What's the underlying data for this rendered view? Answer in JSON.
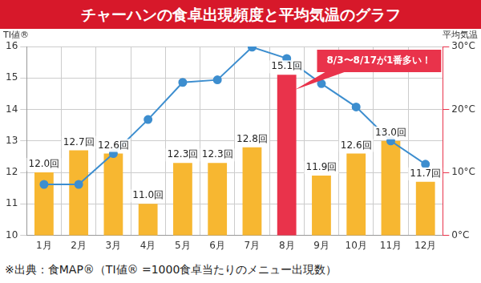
{
  "chart_data": {
    "type": "bar",
    "title": "チャーハンの食卓出現頻度と平均気温のグラフ",
    "footnote": "※出典：食MAP®（TI値® =1000食卓当たりのメニュー出現数）",
    "y_label": "TI値®",
    "y2_label": "平均気温",
    "categories": [
      "1月",
      "2月",
      "3月",
      "4月",
      "5月",
      "6月",
      "7月",
      "8月",
      "9月",
      "10月",
      "11月",
      "12月"
    ],
    "series": [
      {
        "type": "bar",
        "axis": "y",
        "values": [
          12.0,
          12.7,
          12.6,
          11.0,
          12.3,
          12.3,
          12.8,
          15.1,
          11.9,
          12.6,
          13.0,
          11.7
        ],
        "value_labels": [
          "12.0回",
          "12.7回",
          "12.6回",
          "11.0回",
          "12.3回",
          "12.3回",
          "12.8回",
          "15.1回",
          "11.9回",
          "12.6回",
          "13.0回",
          "11.7回"
        ],
        "color": "#f7b731",
        "colors": [
          "#f7b731",
          "#f7b731",
          "#f7b731",
          "#f7b731",
          "#f7b731",
          "#f7b731",
          "#f7b731",
          "#e9334b",
          "#f7b731",
          "#f7b731",
          "#f7b731",
          "#f7b731"
        ]
      },
      {
        "type": "line",
        "axis": "y2",
        "values": [
          8.1,
          8.1,
          13.0,
          18.4,
          24.3,
          24.7,
          29.9,
          28.1,
          24.1,
          20.4,
          15.0,
          11.3
        ],
        "color": "#3d8ecf",
        "marker": "circle",
        "line_style": "solid"
      }
    ],
    "ylim": [
      10,
      16
    ],
    "yticks": [
      10,
      11,
      12,
      13,
      14,
      15,
      16
    ],
    "y2lim": [
      0,
      30
    ],
    "y2ticks": [
      {
        "value": 0,
        "label": "0°C"
      },
      {
        "value": 10,
        "label": "10°C"
      },
      {
        "value": 20,
        "label": "20°C"
      },
      {
        "value": 30,
        "label": "30°C"
      }
    ],
    "grid": true,
    "data_labels": true,
    "annotations": [
      {
        "text": "8/3〜8/17が1番多い！",
        "category": "8月"
      }
    ]
  }
}
